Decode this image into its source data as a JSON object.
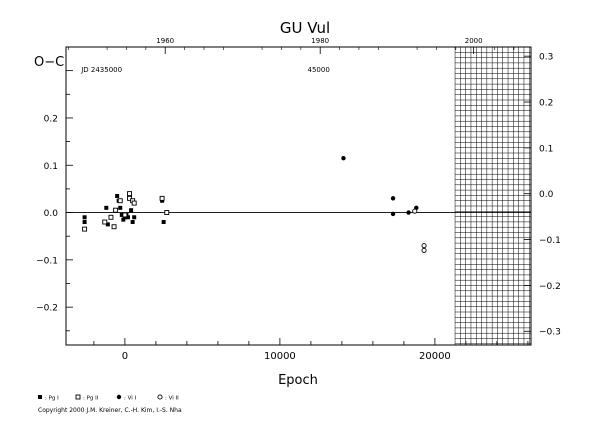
{
  "chart_data": {
    "type": "scatter",
    "title": "GU Vul",
    "ylabel": "O−C",
    "xlabel": "Epoch",
    "xlim": [
      -3800,
      26200
    ],
    "ylim_left": [
      -0.28,
      0.35
    ],
    "ylim_right": [
      -0.33,
      0.32
    ],
    "x_ticks": [
      0,
      10000,
      20000
    ],
    "x_tick_labels": [
      "0",
      "10000",
      "20000"
    ],
    "y_ticks": [
      0.2,
      0.1,
      0.0,
      -0.1,
      -0.2
    ],
    "y_tick_labels": [
      "0.2",
      "0.1",
      "0.0",
      "−0.1",
      "−0.2"
    ],
    "right_ticks": [
      0.3,
      0.2,
      0.1,
      0.0,
      -0.1,
      -0.2,
      -0.3
    ],
    "right_tick_labels": [
      "0.3",
      "0.2",
      "0.1",
      "0.0",
      "−0.1",
      "−0.2",
      "−0.3"
    ],
    "top_year_ticks": [
      {
        "label": "1960",
        "epoch": 2600
      },
      {
        "label": "1980",
        "epoch": 12600
      },
      {
        "label": "2000",
        "epoch": 22500
      }
    ],
    "jd_labels": [
      {
        "text": "JD 2435000",
        "epoch": -1500
      },
      {
        "text": "45000",
        "epoch": 12500
      }
    ],
    "future_region_start": 21300,
    "zero_line": 0,
    "series": [
      {
        "name": ": Pg I",
        "marker": "filled-square",
        "points": [
          [
            -2600,
            -0.01
          ],
          [
            -2600,
            -0.02
          ],
          [
            -1200,
            0.01
          ],
          [
            -1100,
            -0.025
          ],
          [
            -500,
            0.035
          ],
          [
            -400,
            0.025
          ],
          [
            -300,
            0.01
          ],
          [
            -200,
            -0.005
          ],
          [
            -100,
            -0.015
          ],
          [
            0,
            -0.01
          ],
          [
            100,
            -0.005
          ],
          [
            200,
            -0.01
          ],
          [
            400,
            0.005
          ],
          [
            500,
            -0.02
          ],
          [
            600,
            -0.01
          ],
          [
            2400,
            0.025
          ],
          [
            2500,
            -0.02
          ]
        ]
      },
      {
        "name": ": Pg II",
        "marker": "open-square",
        "points": [
          [
            -2600,
            -0.035
          ],
          [
            -1300,
            -0.02
          ],
          [
            -900,
            -0.01
          ],
          [
            -700,
            -0.03
          ],
          [
            -600,
            0.005
          ],
          [
            -300,
            0.025
          ],
          [
            0,
            -0.005
          ],
          [
            300,
            0.03
          ],
          [
            300,
            0.04
          ],
          [
            500,
            0.025
          ],
          [
            600,
            0.02
          ],
          [
            2400,
            0.03
          ],
          [
            2700,
            0.0
          ]
        ]
      },
      {
        "name": ": Vi I",
        "marker": "filled-circle",
        "points": [
          [
            14100,
            0.115
          ],
          [
            17300,
            0.03
          ],
          [
            17300,
            -0.003
          ],
          [
            18300,
            0.0
          ],
          [
            18800,
            0.01
          ]
        ]
      },
      {
        "name": ": Vi II",
        "marker": "open-circle",
        "points": [
          [
            18700,
            0.003
          ],
          [
            19300,
            -0.07
          ],
          [
            19300,
            -0.08
          ]
        ]
      }
    ],
    "footer_credit": "Copyright 2000 J.M. Kreiner, C.-H. Kim, I.-S. Nha"
  }
}
